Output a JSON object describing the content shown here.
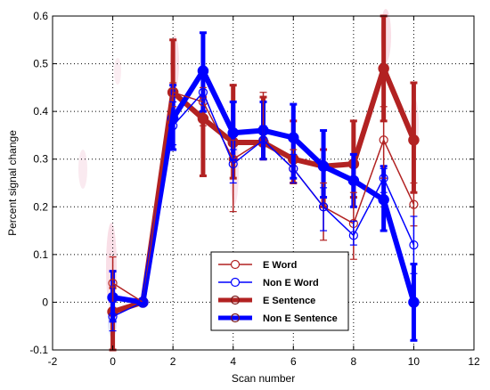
{
  "chart_data": {
    "type": "line",
    "title": "",
    "xlabel": "Scan number",
    "ylabel": "Percent signal change",
    "xlim": [
      -2,
      12
    ],
    "ylim": [
      -0.1,
      0.6
    ],
    "xticks": [
      -2,
      0,
      2,
      4,
      6,
      8,
      10,
      12
    ],
    "yticks": [
      -0.1,
      0,
      0.1,
      0.2,
      0.3,
      0.4,
      0.5,
      0.6
    ],
    "xtick_labels": [
      "-2",
      "0",
      "2",
      "4",
      "6",
      "8",
      "10",
      "12"
    ],
    "ytick_labels": [
      "-0.1",
      "0",
      "0.1",
      "0.2",
      "0.3",
      "0.4",
      "0.5",
      "0.6"
    ],
    "grid": true,
    "grid_style": "dotted",
    "legend_position": "bottom-center",
    "x": [
      0,
      1,
      2,
      3,
      4,
      5,
      6,
      7,
      8,
      9,
      10
    ],
    "series": [
      {
        "name": "E Word",
        "color": "#b22222",
        "style": "thin",
        "marker": "open-circle",
        "values": [
          0.04,
          0.0,
          0.44,
          0.42,
          0.3,
          0.34,
          0.28,
          0.2,
          0.165,
          0.34,
          0.205
        ],
        "err_low": [
          0.0,
          0.0,
          0.41,
          0.37,
          0.19,
          0.3,
          0.25,
          0.13,
          0.09,
          0.26,
          0.16
        ],
        "err_high": [
          0.095,
          0.0,
          0.46,
          0.45,
          0.34,
          0.44,
          0.32,
          0.25,
          0.23,
          0.41,
          0.25
        ]
      },
      {
        "name": "Non E Word",
        "color": "#0000ff",
        "style": "thin",
        "marker": "open-circle",
        "values": [
          -0.03,
          0.0,
          0.37,
          0.44,
          0.29,
          0.34,
          0.28,
          0.2,
          0.14,
          0.26,
          0.12
        ],
        "err_low": [
          -0.06,
          0.0,
          0.33,
          0.4,
          0.25,
          0.3,
          0.25,
          0.15,
          0.12,
          0.23,
          0.06
        ],
        "err_high": [
          0.0,
          0.0,
          0.42,
          0.47,
          0.32,
          0.37,
          0.31,
          0.24,
          0.17,
          0.28,
          0.18
        ]
      },
      {
        "name": "E Sentence",
        "color": "#b22222",
        "style": "thick",
        "marker": "filled-circle",
        "values": [
          -0.02,
          0.0,
          0.44,
          0.385,
          0.335,
          0.335,
          0.3,
          0.285,
          0.29,
          0.49,
          0.34
        ],
        "err_low": [
          -0.1,
          0.0,
          0.39,
          0.265,
          0.26,
          0.3,
          0.25,
          0.2,
          0.22,
          0.38,
          0.23
        ],
        "err_high": [
          0.03,
          0.0,
          0.55,
          0.43,
          0.455,
          0.43,
          0.38,
          0.32,
          0.38,
          0.6,
          0.46
        ]
      },
      {
        "name": "Non E Sentence",
        "color": "#0000ff",
        "style": "thick",
        "marker": "filled-circle",
        "values": [
          0.01,
          0.0,
          0.385,
          0.485,
          0.355,
          0.36,
          0.345,
          0.285,
          0.255,
          0.215,
          0.0
        ],
        "err_low": [
          -0.04,
          0.0,
          0.32,
          0.4,
          0.3,
          0.3,
          0.26,
          0.22,
          0.2,
          0.15,
          -0.08
        ],
        "err_high": [
          0.065,
          0.0,
          0.455,
          0.565,
          0.42,
          0.42,
          0.415,
          0.36,
          0.31,
          0.285,
          0.08
        ]
      }
    ]
  }
}
